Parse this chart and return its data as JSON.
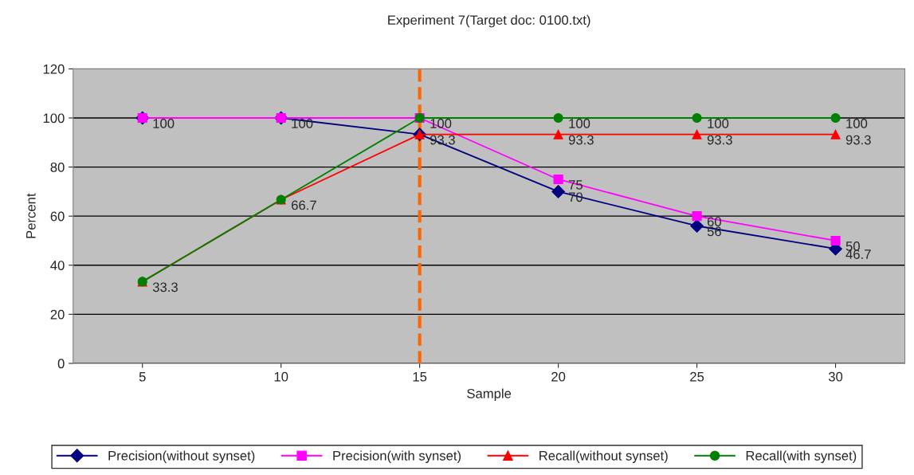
{
  "chart_data": {
    "type": "line",
    "title": "Experiment 7(Target doc: 0100.txt)",
    "xlabel": "Sample",
    "ylabel": "Percent",
    "categories": [
      "5",
      "10",
      "15",
      "20",
      "25",
      "30"
    ],
    "series": [
      {
        "name": "Precision(without synset)",
        "color": "#000080",
        "marker": "diamond",
        "values": [
          100,
          100,
          93.3,
          70,
          56,
          46.7
        ],
        "value_labels": [
          "100",
          "100",
          "93.3",
          "70",
          "56",
          "46.7"
        ]
      },
      {
        "name": "Precision(with synset)",
        "color": "#ff00ff",
        "marker": "square",
        "values": [
          100,
          100,
          100,
          75,
          60,
          50
        ],
        "value_labels": [
          null,
          null,
          "100",
          "75",
          "60",
          "50"
        ]
      },
      {
        "name": "Recall(without synset)",
        "color": "#ff0000",
        "marker": "triangle",
        "values": [
          33.3,
          66.7,
          93.3,
          93.3,
          93.3,
          93.3
        ],
        "value_labels": [
          "33.3",
          "66.7",
          null,
          "93.3",
          "93.3",
          "93.3"
        ]
      },
      {
        "name": "Recall(with synset)",
        "color": "#008000",
        "marker": "circle",
        "values": [
          33.3,
          66.7,
          100,
          100,
          100,
          100
        ],
        "value_labels": [
          null,
          null,
          null,
          "100",
          "100",
          "100"
        ]
      }
    ],
    "ylim": [
      0,
      120
    ],
    "yticks": [
      0,
      20,
      40,
      60,
      80,
      100,
      120
    ],
    "grid": "y",
    "legend": "bottom",
    "line_style": "solid",
    "ref_lines": [
      {
        "axis": "x",
        "value": "15",
        "color": "#ff6600",
        "line_style": "dashed"
      }
    ]
  }
}
